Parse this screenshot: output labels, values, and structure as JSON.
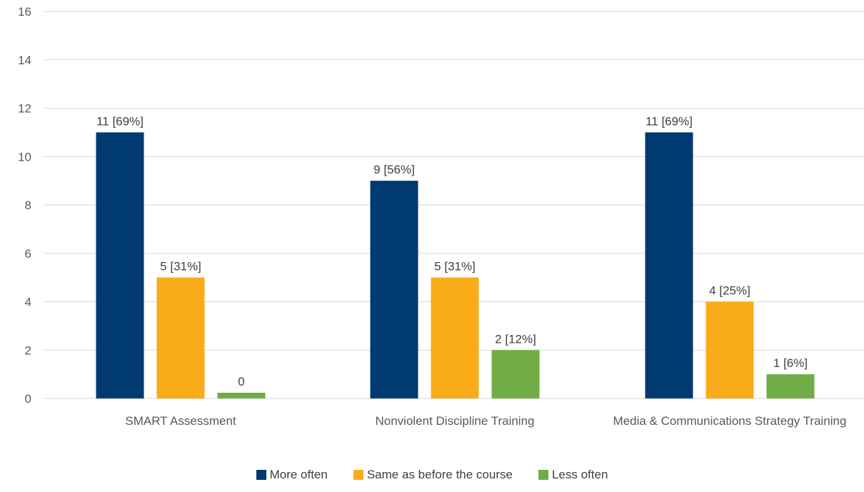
{
  "chart_data": {
    "type": "bar",
    "categories": [
      "SMART Assessment",
      "Nonviolent Discipline Training",
      "Media & Communications Strategy Training"
    ],
    "series": [
      {
        "name": "More often",
        "color": "#003A70",
        "values": [
          11,
          9,
          11
        ],
        "labels": [
          "11 [69%]",
          "9 [56%]",
          "11 [69%]"
        ]
      },
      {
        "name": "Same as before the course",
        "color": "#F9AB19",
        "values": [
          5,
          5,
          4
        ],
        "labels": [
          "5 [31%]",
          "5 [31%]",
          "4 [25%]"
        ]
      },
      {
        "name": "Less often",
        "color": "#70AD47",
        "values": [
          0,
          2,
          1
        ],
        "labels": [
          "0",
          "2 [12%]",
          "1 [6%]"
        ]
      }
    ],
    "yticks": [
      "0",
      "2",
      "4",
      "6",
      "8",
      "10",
      "12",
      "14",
      "16"
    ],
    "ylim": [
      0,
      16
    ],
    "grid": true,
    "legend_position": "bottom"
  }
}
